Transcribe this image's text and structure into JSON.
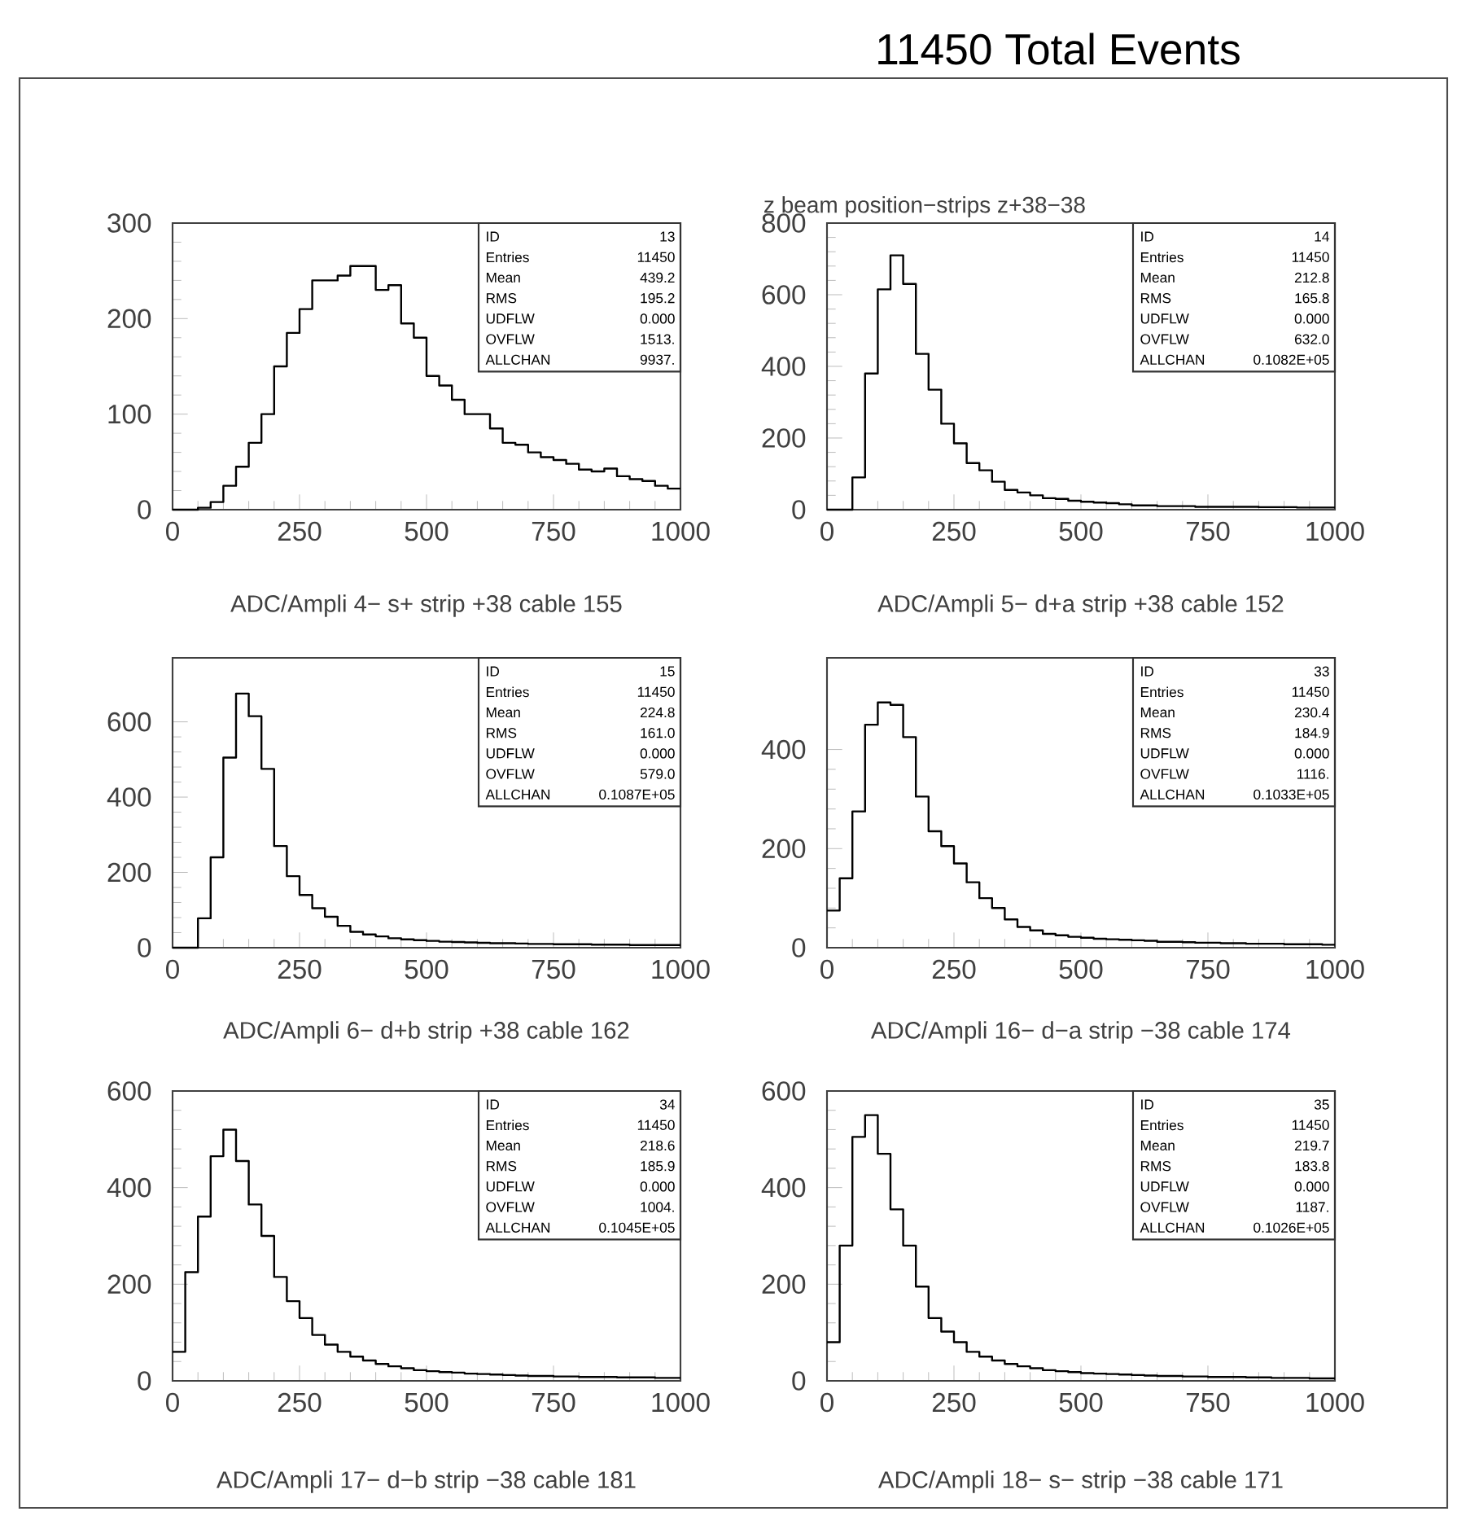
{
  "chart_data": [
    {
      "type": "other",
      "title": "11450 Total Events",
      "subtitle": "z beam position−strips z+38−38"
    },
    {
      "type": "histogram",
      "xlabel": "ADC/Ampli 4− s+ strip +38 cable 155",
      "xlim": [
        0,
        1000
      ],
      "xticks": [
        0,
        250,
        500,
        750,
        1000
      ],
      "ylim": [
        0,
        300
      ],
      "yticks": [
        0,
        100,
        200,
        300
      ],
      "bins": [
        0,
        25,
        50,
        75,
        100,
        125,
        150,
        175,
        200,
        225,
        250,
        275,
        300,
        325,
        350,
        375,
        400,
        425,
        450,
        475,
        500,
        525,
        550,
        575,
        600,
        625,
        650,
        675,
        700,
        725,
        750,
        775,
        800,
        825,
        850,
        875,
        900,
        925,
        950,
        975,
        1000
      ],
      "values": [
        0,
        0,
        2,
        8,
        25,
        45,
        70,
        100,
        150,
        185,
        210,
        240,
        240,
        245,
        255,
        255,
        230,
        235,
        195,
        180,
        140,
        130,
        115,
        100,
        100,
        85,
        70,
        68,
        60,
        55,
        52,
        48,
        42,
        40,
        43,
        35,
        32,
        30,
        25,
        22
      ],
      "annotations": [
        "ID",
        "13",
        "Entries",
        "11450",
        "Mean",
        "439.2",
        "RMS",
        "195.2",
        "UDFLW",
        "0.000",
        "OVFLW",
        "1513.",
        "ALLCHAN",
        "9937."
      ]
    },
    {
      "type": "histogram",
      "xlabel": "ADC/Ampli 5− d+a strip +38 cable 152",
      "xlim": [
        0,
        1000
      ],
      "xticks": [
        0,
        250,
        500,
        750,
        1000
      ],
      "ylim": [
        0,
        800
      ],
      "yticks": [
        0,
        200,
        400,
        600,
        800
      ],
      "bins": [
        0,
        25,
        50,
        75,
        100,
        125,
        150,
        175,
        200,
        225,
        250,
        275,
        300,
        325,
        350,
        375,
        400,
        425,
        450,
        475,
        500,
        525,
        550,
        575,
        600,
        625,
        650,
        675,
        700,
        725,
        750,
        775,
        800,
        825,
        850,
        875,
        900,
        925,
        950,
        975,
        1000
      ],
      "values": [
        0,
        0,
        90,
        380,
        615,
        710,
        630,
        435,
        335,
        240,
        185,
        130,
        110,
        78,
        55,
        48,
        40,
        32,
        30,
        25,
        22,
        20,
        18,
        15,
        12,
        12,
        10,
        10,
        10,
        8,
        8,
        8,
        8,
        8,
        7,
        7,
        7,
        6,
        6,
        6
      ],
      "annotations": [
        "ID",
        "14",
        "Entries",
        "11450",
        "Mean",
        "212.8",
        "RMS",
        "165.8",
        "UDFLW",
        "0.000",
        "OVFLW",
        "632.0",
        "ALLCHAN",
        "0.1082E+05"
      ]
    },
    {
      "type": "histogram",
      "xlabel": "ADC/Ampli 6− d+b  strip +38 cable 162",
      "xlim": [
        0,
        1000
      ],
      "xticks": [
        0,
        250,
        500,
        750,
        1000
      ],
      "ylim": [
        0,
        770
      ],
      "yticks": [
        0,
        200,
        400,
        600
      ],
      "bins": [
        0,
        25,
        50,
        75,
        100,
        125,
        150,
        175,
        200,
        225,
        250,
        275,
        300,
        325,
        350,
        375,
        400,
        425,
        450,
        475,
        500,
        525,
        550,
        575,
        600,
        625,
        650,
        675,
        700,
        725,
        750,
        775,
        800,
        825,
        850,
        875,
        900,
        925,
        950,
        975,
        1000
      ],
      "values": [
        0,
        0,
        78,
        240,
        505,
        675,
        615,
        475,
        270,
        190,
        140,
        105,
        82,
        58,
        42,
        35,
        30,
        25,
        22,
        20,
        18,
        16,
        15,
        14,
        13,
        12,
        12,
        11,
        10,
        10,
        9,
        9,
        9,
        8,
        8,
        8,
        7,
        7,
        7,
        7
      ],
      "annotations": [
        "ID",
        "15",
        "Entries",
        "11450",
        "Mean",
        "224.8",
        "RMS",
        "161.0",
        "UDFLW",
        "0.000",
        "OVFLW",
        "579.0",
        "ALLCHAN",
        "0.1087E+05"
      ]
    },
    {
      "type": "histogram",
      "xlabel": "ADC/Ampli 16− d−a  strip −38 cable 174",
      "xlim": [
        0,
        1000
      ],
      "xticks": [
        0,
        250,
        500,
        750,
        1000
      ],
      "ylim": [
        0,
        585
      ],
      "yticks": [
        0,
        200,
        400
      ],
      "bins": [
        0,
        25,
        50,
        75,
        100,
        125,
        150,
        175,
        200,
        225,
        250,
        275,
        300,
        325,
        350,
        375,
        400,
        425,
        450,
        475,
        500,
        525,
        550,
        575,
        600,
        625,
        650,
        675,
        700,
        725,
        750,
        775,
        800,
        825,
        850,
        875,
        900,
        925,
        950,
        975,
        1000
      ],
      "values": [
        75,
        140,
        275,
        450,
        495,
        490,
        425,
        305,
        235,
        205,
        170,
        132,
        100,
        80,
        57,
        42,
        35,
        28,
        25,
        22,
        20,
        18,
        17,
        16,
        15,
        14,
        12,
        12,
        11,
        10,
        10,
        9,
        9,
        8,
        8,
        8,
        7,
        7,
        7,
        6
      ],
      "annotations": [
        "ID",
        "33",
        "Entries",
        "11450",
        "Mean",
        "230.4",
        "RMS",
        "184.9",
        "UDFLW",
        "0.000",
        "OVFLW",
        "1116.",
        "ALLCHAN",
        "0.1033E+05"
      ]
    },
    {
      "type": "histogram",
      "xlabel": "ADC/Ampli 17− d−b strip −38 cable 181",
      "xlim": [
        0,
        1000
      ],
      "xticks": [
        0,
        250,
        500,
        750,
        1000
      ],
      "ylim": [
        0,
        600
      ],
      "yticks": [
        0,
        200,
        400,
        600
      ],
      "bins": [
        0,
        25,
        50,
        75,
        100,
        125,
        150,
        175,
        200,
        225,
        250,
        275,
        300,
        325,
        350,
        375,
        400,
        425,
        450,
        475,
        500,
        525,
        550,
        575,
        600,
        625,
        650,
        675,
        700,
        725,
        750,
        775,
        800,
        825,
        850,
        875,
        900,
        925,
        950,
        975,
        1000
      ],
      "values": [
        60,
        225,
        340,
        465,
        520,
        455,
        365,
        300,
        215,
        165,
        130,
        95,
        75,
        60,
        50,
        42,
        35,
        30,
        26,
        22,
        20,
        18,
        17,
        15,
        14,
        13,
        12,
        11,
        10,
        10,
        9,
        9,
        8,
        8,
        8,
        7,
        7,
        7,
        6,
        6
      ],
      "annotations": [
        "ID",
        "34",
        "Entries",
        "11450",
        "Mean",
        "218.6",
        "RMS",
        "185.9",
        "UDFLW",
        "0.000",
        "OVFLW",
        "1004.",
        "ALLCHAN",
        "0.1045E+05"
      ]
    },
    {
      "type": "histogram",
      "xlabel": "ADC/Ampli 18− s− strip −38 cable 171",
      "xlim": [
        0,
        1000
      ],
      "xticks": [
        0,
        250,
        500,
        750,
        1000
      ],
      "ylim": [
        0,
        600
      ],
      "yticks": [
        0,
        200,
        400,
        600
      ],
      "bins": [
        0,
        25,
        50,
        75,
        100,
        125,
        150,
        175,
        200,
        225,
        250,
        275,
        300,
        325,
        350,
        375,
        400,
        425,
        450,
        475,
        500,
        525,
        550,
        575,
        600,
        625,
        650,
        675,
        700,
        725,
        750,
        775,
        800,
        825,
        850,
        875,
        900,
        925,
        950,
        975,
        1000
      ],
      "values": [
        80,
        280,
        505,
        550,
        470,
        355,
        280,
        195,
        130,
        102,
        80,
        60,
        50,
        42,
        35,
        30,
        26,
        22,
        20,
        18,
        16,
        15,
        14,
        13,
        12,
        11,
        10,
        10,
        9,
        9,
        8,
        8,
        8,
        7,
        7,
        6,
        6,
        6,
        5,
        5
      ],
      "annotations": [
        "ID",
        "35",
        "Entries",
        "11450",
        "Mean",
        "219.7",
        "RMS",
        "183.8",
        "UDFLW",
        "0.000",
        "OVFLW",
        "1187.",
        "ALLCHAN",
        "0.1026E+05"
      ]
    }
  ]
}
